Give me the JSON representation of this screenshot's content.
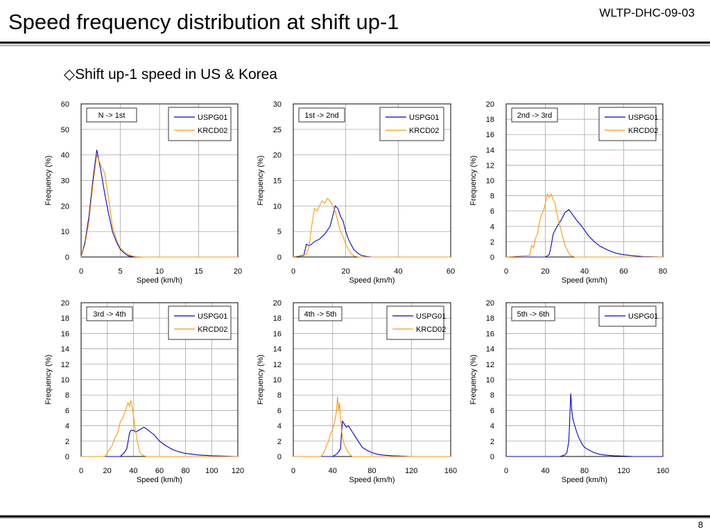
{
  "header": {
    "title": "Speed frequency distribution at shift up-1",
    "doc_code": "WLTP-DHC-09-03"
  },
  "subtitle": "◇Shift up-1 speed in US & Korea",
  "page_number": "8",
  "colors": {
    "USPG01": "#0000cc",
    "KRCD02": "#ff9900",
    "grid": "#9a9a9a"
  },
  "chart_data": [
    {
      "type": "line",
      "box_label": "N -> 1st",
      "xlabel": "Speed (km/h)",
      "ylabel": "Frequency (%)",
      "xlim": [
        0,
        20
      ],
      "ylim": [
        0,
        60
      ],
      "xticks": [
        0,
        5,
        10,
        15,
        20
      ],
      "yticks": [
        0,
        10,
        20,
        30,
        40,
        50,
        60
      ],
      "legend": "top-right",
      "series": [
        {
          "name": "USPG01",
          "x": [
            0,
            0.5,
            1,
            1.5,
            2,
            2.5,
            3,
            3.5,
            4,
            4.5,
            5,
            5.5,
            6,
            6.5,
            7,
            8,
            10,
            15,
            20
          ],
          "y": [
            0,
            6,
            16,
            30,
            42,
            34,
            25,
            17,
            10,
            6,
            3,
            1.5,
            0.5,
            0.2,
            0,
            0,
            0,
            0,
            0
          ]
        },
        {
          "name": "KRCD02",
          "x": [
            0,
            0.5,
            1,
            1.5,
            2,
            2.5,
            3,
            3.5,
            4,
            4.5,
            5,
            5.5,
            6,
            6.5,
            7,
            8,
            10,
            15,
            20
          ],
          "y": [
            0,
            5,
            14,
            28,
            40,
            36,
            33,
            23,
            12,
            7,
            3.5,
            2,
            1,
            0.4,
            0.1,
            0,
            0,
            0,
            0
          ]
        }
      ]
    },
    {
      "type": "line",
      "box_label": "1st -> 2nd",
      "xlabel": "Speed (km/h)",
      "ylabel": "Frequency (%)",
      "xlim": [
        0,
        60
      ],
      "ylim": [
        0,
        30
      ],
      "xticks": [
        0,
        20,
        40,
        60
      ],
      "yticks": [
        0,
        5,
        10,
        15,
        20,
        25,
        30
      ],
      "legend": "top-right",
      "series": [
        {
          "name": "USPG01",
          "x": [
            0,
            4,
            5,
            6,
            7,
            8,
            10,
            12,
            14,
            15,
            16,
            17,
            18,
            19,
            20,
            21,
            22,
            23,
            24,
            25,
            26,
            27,
            28,
            30,
            35,
            60
          ],
          "y": [
            0,
            0.3,
            2.5,
            2.2,
            2.5,
            3,
            3.5,
            4.5,
            6,
            8,
            10,
            9.5,
            8,
            7,
            5,
            3.5,
            2.5,
            1.5,
            1,
            0.6,
            0.3,
            0.2,
            0.1,
            0,
            0,
            0
          ]
        },
        {
          "name": "KRCD02",
          "x": [
            0,
            5,
            6,
            7,
            8,
            9,
            10,
            11,
            12,
            13,
            14,
            15,
            16,
            17,
            18,
            19,
            20,
            21,
            22,
            23,
            25,
            60
          ],
          "y": [
            0,
            0.5,
            2,
            6,
            9.5,
            9,
            10,
            11,
            10.5,
            11.5,
            11,
            10,
            9,
            7,
            5,
            4,
            2.5,
            1.5,
            0.7,
            0.2,
            0,
            0
          ]
        }
      ]
    },
    {
      "type": "line",
      "box_label": "2nd -> 3rd",
      "xlabel": "Speed (km/h)",
      "ylabel": "Frequency (%)",
      "xlim": [
        0,
        80
      ],
      "ylim": [
        0,
        20
      ],
      "xticks": [
        0,
        20,
        40,
        60,
        80
      ],
      "yticks": [
        0,
        2,
        4,
        6,
        8,
        10,
        12,
        14,
        16,
        18,
        20
      ],
      "legend": "top-right",
      "series": [
        {
          "name": "USPG01",
          "x": [
            0,
            20,
            22,
            23,
            24,
            25,
            26,
            28,
            30,
            32,
            34,
            36,
            38,
            40,
            42,
            45,
            48,
            52,
            56,
            60,
            65,
            70,
            80
          ],
          "y": [
            0,
            0,
            0.3,
            1.5,
            3,
            3.5,
            4,
            4.8,
            5.8,
            6.2,
            5.5,
            4.8,
            4.2,
            3.5,
            2.8,
            2,
            1.4,
            0.9,
            0.5,
            0.3,
            0.15,
            0.05,
            0
          ]
        },
        {
          "name": "KRCD02",
          "x": [
            0,
            12,
            13,
            14,
            15,
            16,
            17,
            18,
            19,
            20,
            21,
            22,
            23,
            24,
            25,
            26,
            27,
            28,
            29,
            30,
            31,
            32,
            33,
            35,
            80
          ],
          "y": [
            0,
            0.2,
            1.5,
            1.2,
            2.5,
            3,
            4.5,
            5.5,
            6,
            7,
            8.2,
            7.8,
            8.2,
            7.5,
            7,
            5.5,
            4.5,
            3.5,
            2.5,
            1.5,
            1,
            0.5,
            0.2,
            0,
            0
          ]
        }
      ]
    },
    {
      "type": "line",
      "box_label": "3rd -> 4th",
      "xlabel": "Speed (km/h)",
      "ylabel": "Frequency (%)",
      "xlim": [
        0,
        120
      ],
      "ylim": [
        0,
        20
      ],
      "xticks": [
        0,
        20,
        40,
        60,
        80,
        100,
        120
      ],
      "yticks": [
        0,
        2,
        4,
        6,
        8,
        10,
        12,
        14,
        16,
        18,
        20
      ],
      "legend": "top-right",
      "series": [
        {
          "name": "USPG01",
          "x": [
            0,
            30,
            33,
            35,
            37,
            38,
            40,
            42,
            45,
            48,
            50,
            53,
            56,
            60,
            65,
            70,
            75,
            80,
            90,
            100,
            110,
            120
          ],
          "y": [
            0,
            0,
            0.5,
            1,
            3,
            3.4,
            3.4,
            3.2,
            3.5,
            3.8,
            3.6,
            3.2,
            2.8,
            2,
            1.4,
            0.9,
            0.6,
            0.4,
            0.2,
            0.1,
            0.05,
            0
          ]
        },
        {
          "name": "KRCD02",
          "x": [
            0,
            18,
            20,
            22,
            24,
            26,
            28,
            30,
            32,
            34,
            36,
            37,
            38,
            39,
            40,
            41,
            42,
            43,
            44,
            45,
            46,
            48,
            50,
            120
          ],
          "y": [
            0,
            0,
            0.5,
            1,
            1.5,
            2.5,
            3,
            4.5,
            5,
            6,
            7,
            6.5,
            7.3,
            6.5,
            5.5,
            4,
            3,
            2,
            1.2,
            0.6,
            0.3,
            0.1,
            0,
            0
          ]
        }
      ]
    },
    {
      "type": "line",
      "box_label": "4th -> 5th",
      "xlabel": "Speed (km/h)",
      "ylabel": "Frequency (%)",
      "xlim": [
        0,
        160
      ],
      "ylim": [
        0,
        20
      ],
      "xticks": [
        0,
        40,
        80,
        120,
        160
      ],
      "yticks": [
        0,
        2,
        4,
        6,
        8,
        10,
        12,
        14,
        16,
        18,
        20
      ],
      "legend": "top-right",
      "series": [
        {
          "name": "USPG01",
          "x": [
            0,
            40,
            44,
            46,
            48,
            49,
            50,
            52,
            54,
            56,
            58,
            60,
            62,
            64,
            66,
            68,
            70,
            75,
            80,
            85,
            90,
            100,
            110,
            120,
            160
          ],
          "y": [
            0,
            0,
            0.3,
            0.6,
            1,
            3,
            4.6,
            4.2,
            3.8,
            4,
            3.6,
            3.2,
            2.8,
            2.4,
            2,
            1.6,
            1.2,
            0.8,
            0.5,
            0.3,
            0.2,
            0.1,
            0.05,
            0,
            0
          ]
        },
        {
          "name": "KRCD02",
          "x": [
            0,
            28,
            30,
            32,
            34,
            36,
            38,
            40,
            42,
            44,
            45,
            46,
            47,
            48,
            49,
            50,
            52,
            54,
            56,
            58,
            60,
            160
          ],
          "y": [
            0,
            0,
            0.3,
            0.8,
            1.5,
            2,
            3,
            3.5,
            4.5,
            6,
            7.8,
            6,
            7,
            5,
            3.5,
            2.5,
            1.5,
            1,
            0.5,
            0.2,
            0,
            0
          ]
        }
      ]
    },
    {
      "type": "line",
      "box_label": "5th -> 6th",
      "xlabel": "Speed (km/h)",
      "ylabel": "Frequency (%)",
      "xlim": [
        0,
        160
      ],
      "ylim": [
        0,
        20
      ],
      "xticks": [
        0,
        40,
        80,
        120,
        160
      ],
      "yticks": [
        0,
        2,
        4,
        6,
        8,
        10,
        12,
        14,
        16,
        18,
        20
      ],
      "legend": "top-right",
      "series": [
        {
          "name": "USPG01",
          "x": [
            0,
            55,
            60,
            62,
            64,
            65,
            66,
            67,
            68,
            70,
            72,
            74,
            76,
            78,
            80,
            85,
            90,
            95,
            100,
            110,
            120,
            130,
            160
          ],
          "y": [
            0,
            0,
            0.2,
            0.5,
            2,
            5,
            8.2,
            6,
            5,
            4,
            3.2,
            2.5,
            2,
            1.5,
            1.2,
            0.8,
            0.5,
            0.3,
            0.2,
            0.1,
            0.05,
            0,
            0
          ]
        }
      ]
    }
  ]
}
